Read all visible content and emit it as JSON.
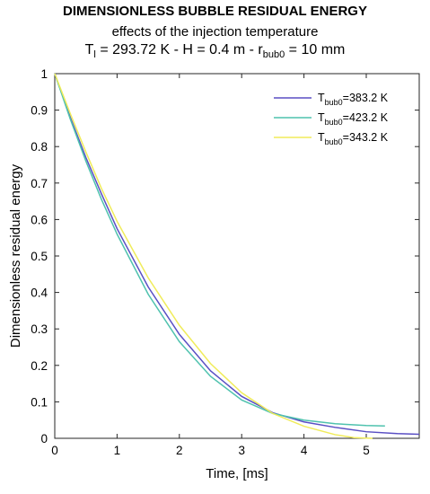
{
  "chart_data": {
    "type": "line",
    "title": "DIMENSIONLESS BUBBLE RESIDUAL ENERGY",
    "subtitle": "effects of the injection temperature",
    "subtitle2": {
      "p1": "T",
      "p1_sub": "l",
      "p2": " = 293.72 K - H = 0.4 m - r",
      "p2_sub": "bub0",
      "p3": " = 10 mm"
    },
    "xlabel": "Time, [ms]",
    "ylabel": "Dimensionless residual energy",
    "xlim": [
      0,
      5.85
    ],
    "ylim": [
      0,
      1
    ],
    "xticks": [
      "0",
      "1",
      "2",
      "3",
      "4",
      "5"
    ],
    "yticks": [
      "0",
      "0.1",
      "0.2",
      "0.3",
      "0.4",
      "0.5",
      "0.6",
      "0.7",
      "0.8",
      "0.9",
      "1"
    ],
    "grid": false,
    "legend_position": "top-right",
    "series": [
      {
        "name_main": "T",
        "name_sub": "bub0",
        "name_rest": "=383.2 K",
        "color": "#5a4fc4",
        "x": [
          0,
          0.25,
          0.5,
          0.75,
          1.0,
          1.5,
          2.0,
          2.5,
          3.0,
          3.5,
          4.0,
          4.5,
          5.0,
          5.5,
          5.85
        ],
        "y": [
          1.0,
          0.88,
          0.77,
          0.67,
          0.575,
          0.415,
          0.285,
          0.185,
          0.115,
          0.07,
          0.045,
          0.03,
          0.018,
          0.013,
          0.011
        ]
      },
      {
        "name_main": "T",
        "name_sub": "bub0",
        "name_rest": "=423.2 K",
        "color": "#4fc2ae",
        "x": [
          0,
          0.25,
          0.5,
          0.75,
          1.0,
          1.5,
          2.0,
          2.5,
          3.0,
          3.5,
          4.0,
          4.5,
          5.0,
          5.3
        ],
        "y": [
          1.0,
          0.875,
          0.76,
          0.655,
          0.56,
          0.395,
          0.265,
          0.17,
          0.105,
          0.068,
          0.05,
          0.04,
          0.035,
          0.034
        ]
      },
      {
        "name_main": "T",
        "name_sub": "bub0",
        "name_rest": "=343.2 K",
        "color": "#f0ec5a",
        "x": [
          0,
          0.25,
          0.5,
          0.75,
          1.0,
          1.5,
          2.0,
          2.5,
          3.0,
          3.5,
          4.0,
          4.5,
          4.8,
          5.1
        ],
        "y": [
          1.0,
          0.89,
          0.785,
          0.685,
          0.595,
          0.44,
          0.31,
          0.205,
          0.125,
          0.068,
          0.033,
          0.01,
          0.002,
          0.0
        ]
      }
    ]
  }
}
